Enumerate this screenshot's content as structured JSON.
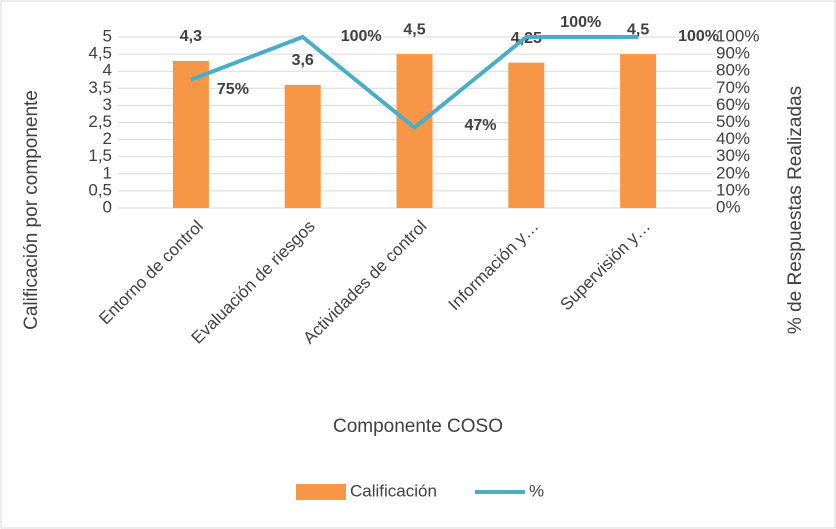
{
  "chart_data": {
    "type": "bar",
    "x_label": "Componente COSO",
    "y_label": "Calificación por componente",
    "y2_label": "% de Respuestas Realizadas",
    "categories": [
      "Entorno de control",
      "Evaluación de riesgos",
      "Actividades de control",
      "Información y…",
      "Supervisión y…"
    ],
    "series": [
      {
        "name": "Calificación",
        "type": "bar",
        "color": "#f79646",
        "values": [
          4.3,
          3.6,
          4.5,
          4.25,
          4.5
        ],
        "value_labels": [
          "4,3",
          "3,6",
          "4,5",
          "4,25",
          "4,5"
        ]
      },
      {
        "name": "%",
        "type": "line",
        "axis": "y2",
        "color": "#4bacc6",
        "values": [
          75,
          100,
          47,
          100,
          100
        ],
        "value_labels": [
          "75%",
          "100%",
          "47%",
          "100%",
          "100%"
        ]
      }
    ],
    "ylim": [
      0,
      5
    ],
    "yticks": [
      0,
      {
        "value": 0.5,
        "label": "0,5"
      },
      1,
      {
        "value": 1.5,
        "label": "1,5"
      },
      2,
      {
        "value": 2.5,
        "label": "2,5"
      },
      3,
      {
        "value": 3.5,
        "label": "3,5"
      },
      4,
      {
        "value": 4.5,
        "label": "4,5"
      },
      5
    ],
    "y2lim": [
      0,
      100
    ],
    "y2ticks": [
      {
        "value": 0,
        "label": "0%"
      },
      {
        "value": 10,
        "label": "10%"
      },
      {
        "value": 20,
        "label": "20%"
      },
      {
        "value": 30,
        "label": "30%"
      },
      {
        "value": 40,
        "label": "40%"
      },
      {
        "value": 50,
        "label": "50%"
      },
      {
        "value": 60,
        "label": "60%"
      },
      {
        "value": 70,
        "label": "70%"
      },
      {
        "value": 80,
        "label": "80%"
      },
      {
        "value": 90,
        "label": "90%"
      },
      {
        "value": 100,
        "label": "100%"
      }
    ],
    "grid": true,
    "legend": "bottom"
  }
}
